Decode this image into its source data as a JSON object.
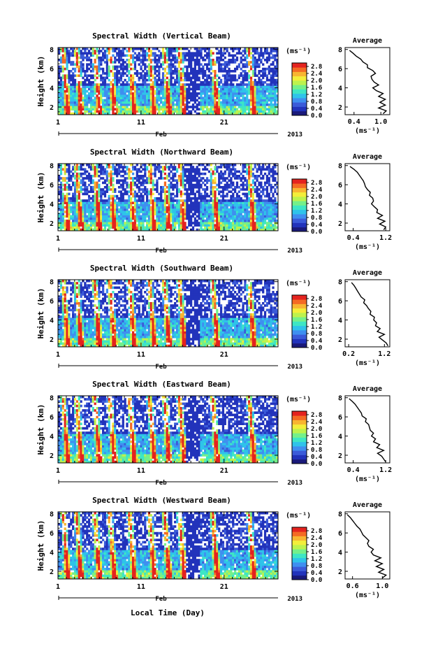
{
  "xlabel": "Local Time (Day)",
  "colorscale": [
    "#1a1a7a",
    "#2233bb",
    "#3b5bd9",
    "#3f8ff0",
    "#2fc3ea",
    "#3ee6c4",
    "#74f08a",
    "#bdf24d",
    "#f3ee3a",
    "#f8b531",
    "#f46a24",
    "#e4231f"
  ],
  "chart_data": [
    {
      "type": "heatmap",
      "title": "Spectral Width (Vertical Beam)",
      "ylabel": "Height (km)",
      "ylim": [
        1.2,
        8.2
      ],
      "yticks": [
        "2",
        "4",
        "6",
        "8"
      ],
      "xticks": [
        "1",
        "11",
        "21"
      ],
      "month": "Feb",
      "year": "2013",
      "colorbar": {
        "unit": "(ms⁻¹)",
        "ticks": [
          "0.0",
          "0.4",
          "0.8",
          "1.2",
          "1.6",
          "2.0",
          "2.4",
          "2.8"
        ],
        "range": [
          0,
          3.0
        ]
      },
      "profile": {
        "title": "Average",
        "xlabel": "(ms⁻¹)",
        "xticks": [
          "0.4",
          "1.0"
        ],
        "xlim": [
          0.2,
          1.2
        ],
        "heights": [
          1.3,
          1.6,
          1.9,
          2.2,
          2.5,
          2.8,
          3.1,
          3.4,
          3.7,
          4.0,
          4.3,
          4.6,
          4.9,
          5.2,
          5.5,
          5.8,
          6.1,
          6.4,
          6.7,
          7.0,
          7.3,
          7.6,
          7.9
        ],
        "values": [
          1.05,
          1.12,
          0.95,
          1.1,
          0.98,
          1.1,
          0.95,
          1.05,
          0.9,
          0.82,
          0.95,
          0.85,
          0.8,
          0.78,
          0.88,
          0.82,
          0.7,
          0.7,
          0.6,
          0.55,
          0.45,
          0.38,
          0.3
        ]
      }
    },
    {
      "type": "heatmap",
      "title": "Spectral Width (Northward Beam)",
      "ylabel": "Height (km)",
      "ylim": [
        1.2,
        8.2
      ],
      "yticks": [
        "2",
        "4",
        "6",
        "8"
      ],
      "xticks": [
        "1",
        "11",
        "21"
      ],
      "month": "Feb",
      "year": "2013",
      "colorbar": {
        "unit": "(ms⁻¹)",
        "ticks": [
          "0.0",
          "0.4",
          "0.8",
          "1.2",
          "1.6",
          "2.0",
          "2.4",
          "2.8"
        ],
        "range": [
          0,
          3.0
        ]
      },
      "profile": {
        "title": "Average",
        "xlabel": "(ms⁻¹)",
        "xticks": [
          "0.4",
          "1.2"
        ],
        "xlim": [
          0.2,
          1.3
        ],
        "heights": [
          1.3,
          1.6,
          1.9,
          2.2,
          2.5,
          2.8,
          3.1,
          3.4,
          3.7,
          4.0,
          4.3,
          4.6,
          4.9,
          5.2,
          5.5,
          5.8,
          6.1,
          6.4,
          6.7,
          7.0,
          7.3,
          7.6,
          7.9
        ],
        "values": [
          1.15,
          1.2,
          1.05,
          1.18,
          1.0,
          1.12,
          0.98,
          1.0,
          0.92,
          0.85,
          0.9,
          0.88,
          0.8,
          0.82,
          0.75,
          0.7,
          0.68,
          0.65,
          0.6,
          0.55,
          0.5,
          0.42,
          0.32
        ]
      }
    },
    {
      "type": "heatmap",
      "title": "Spectral Width (Southward Beam)",
      "ylabel": "Height (km)",
      "ylim": [
        1.2,
        8.2
      ],
      "yticks": [
        "2",
        "4",
        "6",
        "8"
      ],
      "xticks": [
        "1",
        "11",
        "21"
      ],
      "month": "Feb",
      "year": "2013",
      "colorbar": {
        "unit": "(ms⁻¹)",
        "ticks": [
          "0.0",
          "0.4",
          "0.8",
          "1.2",
          "1.6",
          "2.0",
          "2.4",
          "2.8"
        ],
        "range": [
          0,
          3.0
        ]
      },
      "profile": {
        "title": "Average",
        "xlabel": "(ms⁻¹)",
        "xticks": [
          "0.2",
          "1.2"
        ],
        "xlim": [
          0.1,
          1.35
        ],
        "heights": [
          1.3,
          1.6,
          1.9,
          2.2,
          2.5,
          2.8,
          3.1,
          3.4,
          3.7,
          4.0,
          4.3,
          4.6,
          4.9,
          5.2,
          5.5,
          5.8,
          6.1,
          6.4,
          6.7,
          7.0,
          7.3,
          7.6,
          7.9
        ],
        "values": [
          1.3,
          1.25,
          1.15,
          1.05,
          1.2,
          1.0,
          1.08,
          0.95,
          0.98,
          0.9,
          0.92,
          0.8,
          0.82,
          0.75,
          0.7,
          0.62,
          0.65,
          0.55,
          0.5,
          0.45,
          0.4,
          0.35,
          0.28
        ]
      }
    },
    {
      "type": "heatmap",
      "title": "Spectral Width (Eastward Beam)",
      "ylabel": "Height (km)",
      "ylim": [
        1.2,
        8.2
      ],
      "yticks": [
        "2",
        "4",
        "6",
        "8"
      ],
      "xticks": [
        "1",
        "11",
        "21"
      ],
      "month": "Feb",
      "year": "2013",
      "colorbar": {
        "unit": "(ms⁻¹)",
        "ticks": [
          "0.0",
          "0.4",
          "0.8",
          "1.2",
          "1.6",
          "2.0",
          "2.4",
          "2.8"
        ],
        "range": [
          0,
          3.0
        ]
      },
      "profile": {
        "title": "Average",
        "xlabel": "(ms⁻¹)",
        "xticks": [
          "0.4",
          "1.2"
        ],
        "xlim": [
          0.2,
          1.3
        ],
        "heights": [
          1.3,
          1.6,
          1.9,
          2.2,
          2.5,
          2.8,
          3.1,
          3.4,
          3.7,
          4.0,
          4.3,
          4.6,
          4.9,
          5.2,
          5.5,
          5.8,
          6.1,
          6.4,
          6.7,
          7.0,
          7.3,
          7.6,
          7.9
        ],
        "values": [
          1.2,
          1.15,
          1.1,
          1.0,
          1.15,
          0.98,
          1.05,
          0.9,
          0.95,
          0.85,
          0.9,
          0.82,
          0.8,
          0.78,
          0.7,
          0.72,
          0.62,
          0.6,
          0.55,
          0.5,
          0.45,
          0.38,
          0.3
        ]
      }
    },
    {
      "type": "heatmap",
      "title": "Spectral Width (Westward Beam)",
      "ylabel": "Height (km)",
      "ylim": [
        1.2,
        8.2
      ],
      "yticks": [
        "2",
        "4",
        "6",
        "8"
      ],
      "xticks": [
        "1",
        "11",
        "21"
      ],
      "month": "Feb",
      "year": "2013",
      "colorbar": {
        "unit": "(ms⁻¹)",
        "ticks": [
          "0.0",
          "0.4",
          "0.8",
          "1.2",
          "1.6",
          "2.0",
          "2.4",
          "2.8"
        ],
        "range": [
          0,
          3.0
        ]
      },
      "profile": {
        "title": "Average",
        "xlabel": "(ms⁻¹)",
        "xticks": [
          "0.6",
          "1.0"
        ],
        "xlim": [
          0.5,
          1.1
        ],
        "heights": [
          1.3,
          1.6,
          1.9,
          2.2,
          2.5,
          2.8,
          3.1,
          3.4,
          3.7,
          4.0,
          4.3,
          4.6,
          4.9,
          5.2,
          5.5,
          5.8,
          6.1,
          6.4,
          6.7,
          7.0,
          7.3,
          7.6,
          7.9
        ],
        "values": [
          1.0,
          1.05,
          0.95,
          1.02,
          0.92,
          1.0,
          0.9,
          0.98,
          0.88,
          0.85,
          0.88,
          0.82,
          0.8,
          0.82,
          0.78,
          0.74,
          0.72,
          0.7,
          0.66,
          0.63,
          0.6,
          0.57,
          0.53
        ]
      }
    }
  ]
}
